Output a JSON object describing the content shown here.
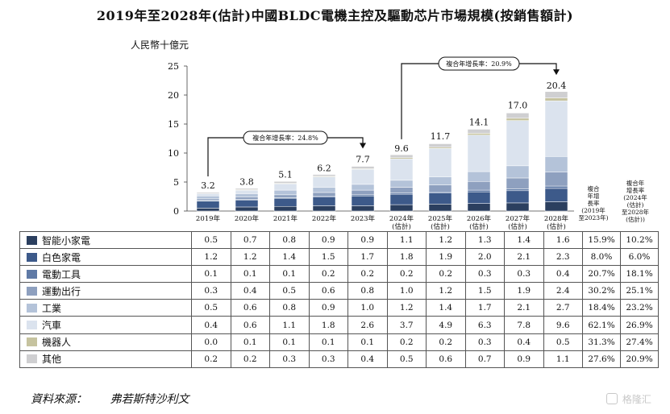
{
  "title": "2019年至2028年(估計)中國BLDC電機主控及驅動芯片市場規模(按銷售額計)",
  "chart_data": {
    "type": "bar",
    "stacked": true,
    "title": "2019年至2028年(估計)中國BLDC電機主控及驅動芯片市場規模(按銷售額計)",
    "ylabel": "人民幣十億元",
    "ylim": [
      0,
      25
    ],
    "yticks": [
      "0",
      "5",
      "10",
      "15",
      "20",
      "25"
    ],
    "categories": [
      "2019年",
      "2020年",
      "2021年",
      "2022年",
      "2023年",
      "2024年\n(估計)",
      "2025年\n(估計)",
      "2026年\n(估計)",
      "2027年\n(估計)",
      "2028年\n(估計)"
    ],
    "totals": [
      "3.2",
      "3.8",
      "5.1",
      "6.2",
      "7.7",
      "9.6",
      "11.7",
      "14.1",
      "17.0",
      "20.4"
    ],
    "total_values": [
      3.2,
      3.8,
      5.1,
      6.2,
      7.7,
      9.6,
      11.7,
      14.1,
      17.0,
      20.4
    ],
    "series": [
      {
        "name": "智能小家電",
        "color": "#2b3f5f",
        "values": [
          0.5,
          0.7,
          0.8,
          0.9,
          0.9,
          1.1,
          1.2,
          1.3,
          1.4,
          1.6
        ],
        "labels": [
          "0.5",
          "0.7",
          "0.8",
          "0.9",
          "0.9",
          "1.1",
          "1.2",
          "1.3",
          "1.4",
          "1.6"
        ],
        "cagr_2019_2023": "15.9%",
        "cagr_2024_2028": "10.2%"
      },
      {
        "name": "白色家電",
        "color": "#3d5a8a",
        "values": [
          1.2,
          1.2,
          1.4,
          1.5,
          1.7,
          1.8,
          1.9,
          2.0,
          2.1,
          2.3
        ],
        "labels": [
          "1.2",
          "1.2",
          "1.4",
          "1.5",
          "1.7",
          "1.8",
          "1.9",
          "2.0",
          "2.1",
          "2.3"
        ],
        "cagr_2019_2023": "8.0%",
        "cagr_2024_2028": "6.0%"
      },
      {
        "name": "電動工具",
        "color": "#5f7aa6",
        "values": [
          0.1,
          0.1,
          0.1,
          0.2,
          0.2,
          0.2,
          0.2,
          0.3,
          0.3,
          0.4
        ],
        "labels": [
          "0.1",
          "0.1",
          "0.1",
          "0.2",
          "0.2",
          "0.2",
          "0.2",
          "0.3",
          "0.3",
          "0.4"
        ],
        "cagr_2019_2023": "20.7%",
        "cagr_2024_2028": "18.1%"
      },
      {
        "name": "運動出行",
        "color": "#8ea0bf",
        "values": [
          0.3,
          0.4,
          0.5,
          0.6,
          0.8,
          1.0,
          1.2,
          1.5,
          1.9,
          2.4
        ],
        "labels": [
          "0.3",
          "0.4",
          "0.5",
          "0.6",
          "0.8",
          "1.0",
          "1.2",
          "1.5",
          "1.9",
          "2.4"
        ],
        "cagr_2019_2023": "30.2%",
        "cagr_2024_2028": "25.1%"
      },
      {
        "name": "工業",
        "color": "#b4c3d9",
        "values": [
          0.5,
          0.6,
          0.8,
          0.9,
          1.0,
          1.2,
          1.4,
          1.7,
          2.1,
          2.7
        ],
        "labels": [
          "0.5",
          "0.6",
          "0.8",
          "0.9",
          "1.0",
          "1.2",
          "1.4",
          "1.7",
          "2.1",
          "2.7"
        ],
        "cagr_2019_2023": "18.4%",
        "cagr_2024_2028": "23.2%"
      },
      {
        "name": "汽車",
        "color": "#dbe3ee",
        "values": [
          0.4,
          0.6,
          1.1,
          1.8,
          2.6,
          3.7,
          4.9,
          6.3,
          7.8,
          9.6
        ],
        "labels": [
          "0.4",
          "0.6",
          "1.1",
          "1.8",
          "2.6",
          "3.7",
          "4.9",
          "6.3",
          "7.8",
          "9.6"
        ],
        "cagr_2019_2023": "62.1%",
        "cagr_2024_2028": "26.9%"
      },
      {
        "name": "機器人",
        "color": "#c6c39f",
        "values": [
          0.0,
          0.1,
          0.1,
          0.1,
          0.1,
          0.2,
          0.2,
          0.3,
          0.4,
          0.5
        ],
        "labels": [
          "0.0",
          "0.1",
          "0.1",
          "0.1",
          "0.1",
          "0.2",
          "0.2",
          "0.3",
          "0.4",
          "0.5"
        ],
        "cagr_2019_2023": "31.3%",
        "cagr_2024_2028": "27.4%"
      },
      {
        "name": "其他",
        "color": "#cfcfd1",
        "values": [
          0.2,
          0.2,
          0.3,
          0.3,
          0.4,
          0.5,
          0.6,
          0.7,
          0.9,
          1.1
        ],
        "labels": [
          "0.2",
          "0.2",
          "0.3",
          "0.3",
          "0.4",
          "0.5",
          "0.6",
          "0.7",
          "0.9",
          "1.1"
        ],
        "cagr_2019_2023": "27.6%",
        "cagr_2024_2028": "20.9%"
      }
    ],
    "cagr_annotations": [
      {
        "text": "複合年增長率：24.8%",
        "from": "2019年",
        "to": "2023年"
      },
      {
        "text": "複合年增長率：20.9%",
        "from": "2024年",
        "to": "2028年"
      }
    ],
    "cagr_headers": [
      "複合年增長率(2019年至2023年)",
      "複合年增長率(2024年(估計)至2028年(估計))"
    ],
    "cagr_header_lines": [
      [
        "複合",
        "年增",
        "長率",
        "(2019年",
        "至2023年)"
      ],
      [
        "複合年",
        "增長率",
        "(2024年",
        "(估計)",
        "至2028年",
        "(估計))"
      ]
    ]
  },
  "source": {
    "label": "資料來源：",
    "value": "弗若斯特沙利文"
  },
  "watermark": "格隆汇"
}
